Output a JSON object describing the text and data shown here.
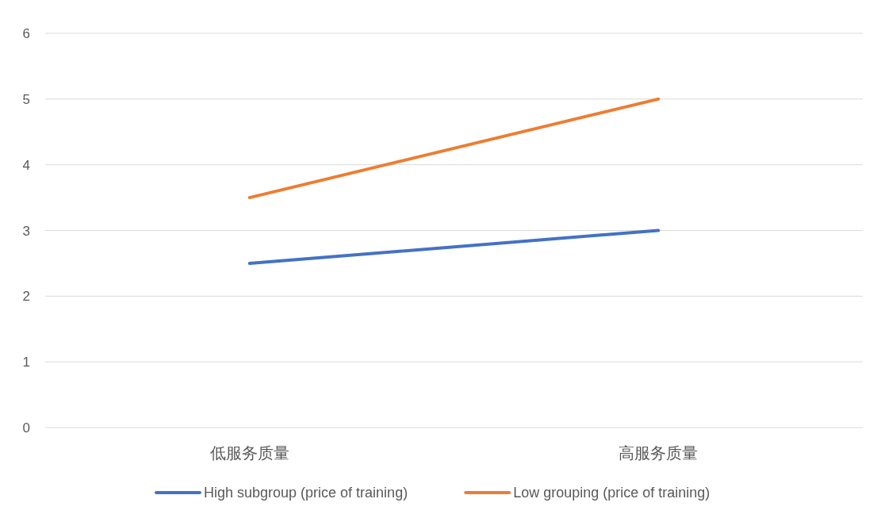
{
  "chart_data": {
    "type": "line",
    "categories": [
      "低服务质量",
      "高服务质量"
    ],
    "series": [
      {
        "name": "High subgroup (price of training)",
        "color": "#4472c4",
        "values": [
          2.5,
          3
        ]
      },
      {
        "name": "Low grouping (price of training)",
        "color": "#ed7d31",
        "values": [
          3.5,
          5
        ]
      }
    ],
    "ylim": [
      0,
      6
    ],
    "yticks": [
      0,
      1,
      2,
      3,
      4,
      5,
      6
    ],
    "grid": "y",
    "legend": "bottom"
  }
}
